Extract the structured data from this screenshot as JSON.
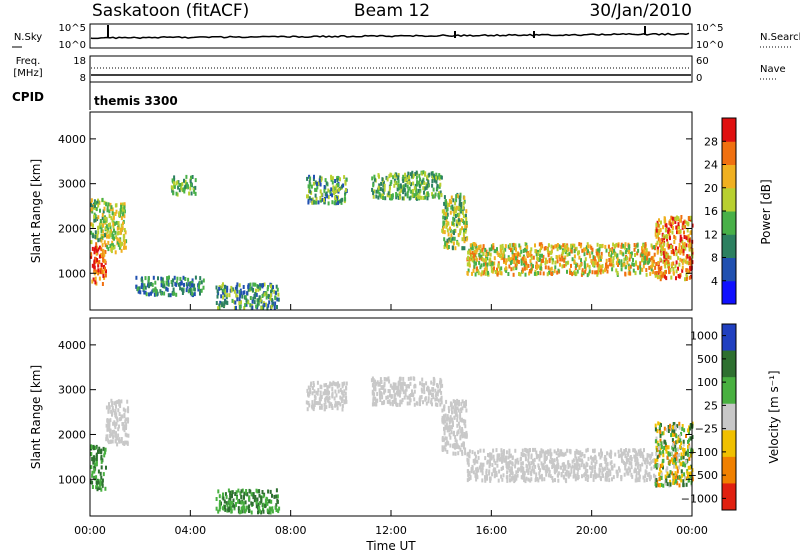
{
  "header": {
    "station": "Saskatoon (fitACF)",
    "beam": "Beam 12",
    "date": "30/Jan/2010"
  },
  "status_panels": {
    "nsky": {
      "label": "N.Sky",
      "left_ticks": [
        "10^5",
        "10^0"
      ],
      "right_label": "N.Search",
      "right_ticks": [
        "10^5",
        "10^0"
      ]
    },
    "freq": {
      "label_line1": "Freq.",
      "label_line2": "[MHz]",
      "left_ticks": [
        "18",
        "8"
      ],
      "right_label": "Nave",
      "right_ticks": [
        "60",
        "0"
      ]
    },
    "cpid": {
      "label": "CPID",
      "mode_text": "themis 3300"
    }
  },
  "chart_data": [
    {
      "type": "heatmap",
      "name": "power",
      "ylabel": "Slant Range [km]",
      "xlabel": "",
      "x_ticks": [
        "00:00",
        "04:00",
        "08:00",
        "12:00",
        "16:00",
        "20:00",
        "00:00"
      ],
      "x_range_hours": [
        0,
        24
      ],
      "y_ticks": [
        1000,
        2000,
        3000,
        4000
      ],
      "ylim": [
        180,
        4600
      ],
      "colorbar": {
        "label": "Power [dB]",
        "ticks": [
          "4",
          "8",
          "12",
          "16",
          "20",
          "24",
          "28"
        ],
        "colors": [
          "#1010ff",
          "#2050b0",
          "#2c8060",
          "#48b048",
          "#b8d030",
          "#f0b020",
          "#f07010",
          "#e01010"
        ]
      },
      "regions": [
        {
          "t": [
            0.0,
            0.6
          ],
          "r": [
            800,
            1700
          ],
          "lev": [
            5,
            7
          ]
        },
        {
          "t": [
            0.0,
            0.6
          ],
          "r": [
            1700,
            2700
          ],
          "lev": [
            2,
            5
          ]
        },
        {
          "t": [
            0.6,
            1.4
          ],
          "r": [
            1500,
            2600
          ],
          "lev": [
            3,
            5
          ]
        },
        {
          "t": [
            3.2,
            4.2
          ],
          "r": [
            2800,
            3200
          ],
          "lev": [
            2,
            4
          ]
        },
        {
          "t": [
            1.8,
            4.5
          ],
          "r": [
            550,
            950
          ],
          "lev": [
            1,
            3
          ]
        },
        {
          "t": [
            5.0,
            7.5
          ],
          "r": [
            250,
            800
          ],
          "lev": [
            1,
            4
          ]
        },
        {
          "t": [
            8.6,
            10.2
          ],
          "r": [
            2600,
            3200
          ],
          "lev": [
            1,
            4
          ]
        },
        {
          "t": [
            11.2,
            14.0
          ],
          "r": [
            2700,
            3300
          ],
          "lev": [
            2,
            4
          ]
        },
        {
          "t": [
            14.0,
            15.0
          ],
          "r": [
            1600,
            2800
          ],
          "lev": [
            2,
            5
          ]
        },
        {
          "t": [
            15.0,
            22.5
          ],
          "r": [
            1000,
            1700
          ],
          "lev": [
            3,
            6
          ]
        },
        {
          "t": [
            22.5,
            24.0
          ],
          "r": [
            900,
            2300
          ],
          "lev": [
            4,
            7
          ]
        }
      ]
    },
    {
      "type": "heatmap",
      "name": "velocity",
      "ylabel": "Slant Range [km]",
      "xlabel": "Time UT",
      "x_ticks": [
        "00:00",
        "04:00",
        "08:00",
        "12:00",
        "16:00",
        "20:00",
        "00:00"
      ],
      "x_range_hours": [
        0,
        24
      ],
      "y_ticks": [
        1000,
        2000,
        3000,
        4000
      ],
      "ylim": [
        180,
        4600
      ],
      "colorbar": {
        "label": "Velocity [m s⁻¹]",
        "ticks": [
          "1000",
          "500",
          "100",
          "25",
          "−25",
          "−100",
          "−500",
          "−1000"
        ],
        "colors": [
          "#2040c0",
          "#2e7030",
          "#48b040",
          "#c8c8c8",
          "#f0c000",
          "#f08000",
          "#e02010"
        ]
      },
      "regions": [
        {
          "t": [
            0.0,
            0.6
          ],
          "r": [
            800,
            1800
          ],
          "lev": [
            1,
            2
          ]
        },
        {
          "t": [
            0.6,
            1.5
          ],
          "r": [
            1800,
            2800
          ],
          "lev": [
            3,
            3
          ]
        },
        {
          "t": [
            5.0,
            7.5
          ],
          "r": [
            300,
            800
          ],
          "lev": [
            1,
            2
          ]
        },
        {
          "t": [
            8.6,
            10.2
          ],
          "r": [
            2600,
            3200
          ],
          "lev": [
            3,
            3
          ]
        },
        {
          "t": [
            11.2,
            14.0
          ],
          "r": [
            2700,
            3300
          ],
          "lev": [
            3,
            3
          ]
        },
        {
          "t": [
            14.0,
            15.0
          ],
          "r": [
            1600,
            2800
          ],
          "lev": [
            3,
            3
          ]
        },
        {
          "t": [
            15.0,
            22.5
          ],
          "r": [
            1000,
            1700
          ],
          "lev": [
            3,
            3
          ]
        },
        {
          "t": [
            22.5,
            24.0
          ],
          "r": [
            900,
            2300
          ],
          "lev": [
            1,
            5
          ]
        }
      ]
    }
  ]
}
